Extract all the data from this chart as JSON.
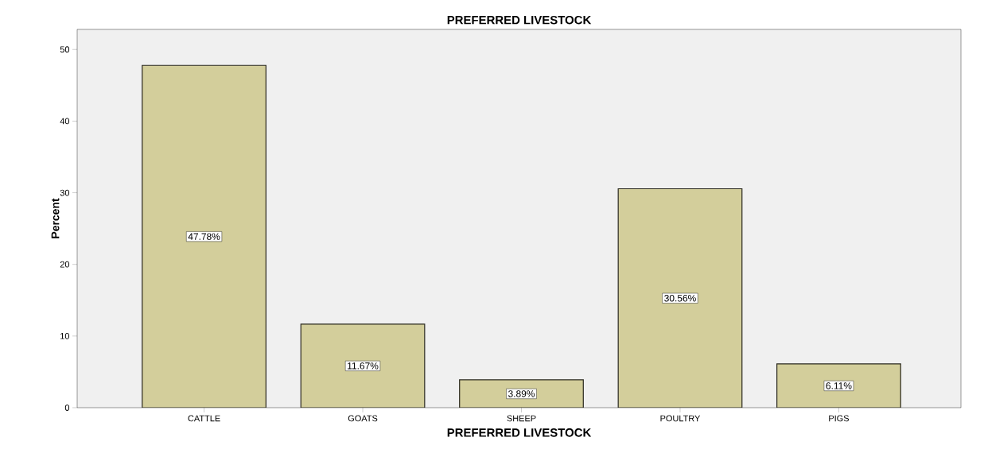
{
  "chart_data": {
    "type": "bar",
    "title": "PREFERRED LIVESTOCK",
    "xlabel": "PREFERRED LIVESTOCK",
    "ylabel": "Percent",
    "categories": [
      "CATTLE",
      "GOATS",
      "SHEEP",
      "POULTRY",
      "PIGS"
    ],
    "values": [
      47.78,
      11.67,
      3.89,
      30.56,
      6.11
    ],
    "value_labels": [
      "47.78%",
      "11.67%",
      "3.89%",
      "30.56%",
      "6.11%"
    ],
    "color": "#d3ce9b",
    "ylim": [
      0,
      52.8
    ],
    "yticks": [
      0,
      10,
      20,
      30,
      40,
      50
    ]
  }
}
